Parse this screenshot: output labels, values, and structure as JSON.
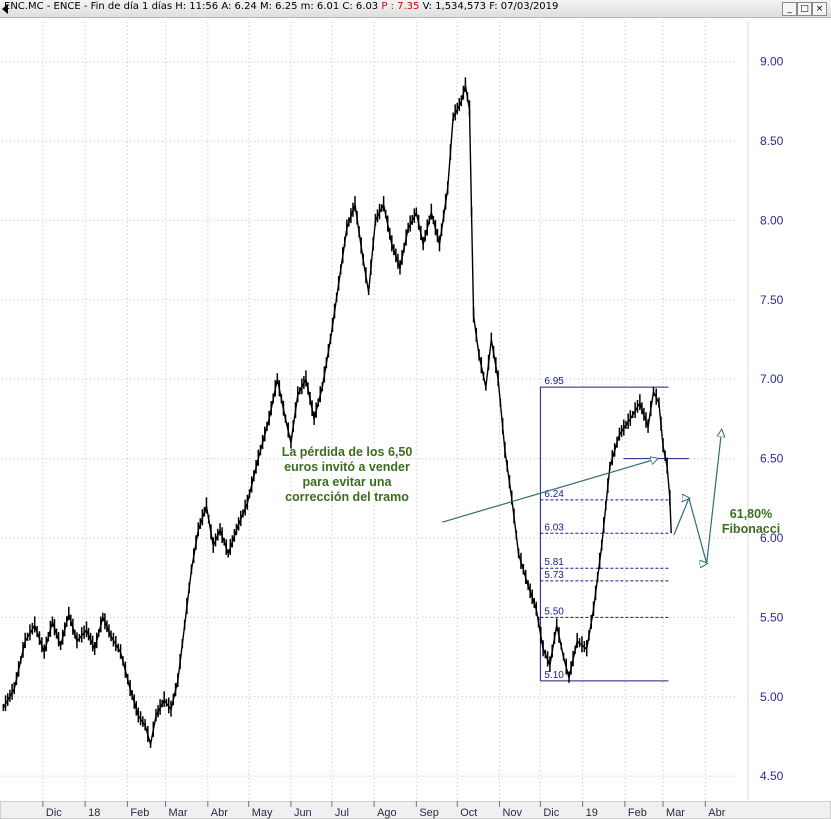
{
  "window": {
    "title_prefix": "ENC.MC - ENCE - Fin de día 1 días",
    "ohlc": {
      "high": "H: 11:56",
      "a": "A: 6.24",
      "m": "M: 6.25",
      "min": "m: 6.01",
      "close": "C: 6.03",
      "p": "P : 7.35",
      "volume": "V: 1,534,573",
      "date": "F: 07/03/2019"
    },
    "buttons": [
      "_",
      "□",
      "×"
    ]
  },
  "chart_data": {
    "type": "candlestick",
    "title": "",
    "xlabel": "",
    "ylabel": "",
    "ylim": [
      4.35,
      9.25
    ],
    "y_ticks": [
      "9.00",
      "8.50",
      "8.00",
      "7.50",
      "7.00",
      "6.50",
      "6.00",
      "5.50",
      "5.00",
      "4.50"
    ],
    "y_tick_values": [
      9.0,
      8.5,
      8.0,
      7.5,
      7.0,
      6.5,
      6.0,
      5.5,
      5.0,
      4.5
    ],
    "x_labels": [
      "Dic",
      "18",
      "Feb",
      "Mar",
      "Abr",
      "May",
      "Jun",
      "Jul",
      "Ago",
      "Sep",
      "Oct",
      "Nov",
      "Dic",
      "19",
      "Feb",
      "Mar",
      "Abr"
    ],
    "x_label_dates": [
      "2017-12-01",
      "2018-01-01",
      "2018-02-01",
      "2018-03-01",
      "2018-04-01",
      "2018-05-01",
      "2018-06-01",
      "2018-07-01",
      "2018-08-01",
      "2018-09-01",
      "2018-10-01",
      "2018-11-01",
      "2018-12-01",
      "2019-01-01",
      "2019-02-01",
      "2019-03-01",
      "2019-04-01"
    ],
    "x_range": [
      "2017-11-01",
      "2019-04-25"
    ],
    "grid": true,
    "colors": {
      "price": "#000000",
      "axis_text": "#2a2a9a",
      "fib": "#1a1a8c",
      "trend": "#2e6e74",
      "annotation": "#3a6e1e",
      "grid": "#c0c0c0"
    },
    "price_path": [
      [
        "2017-11-02",
        4.93
      ],
      [
        "2017-11-10",
        5.05
      ],
      [
        "2017-11-18",
        5.35
      ],
      [
        "2017-11-25",
        5.45
      ],
      [
        "2017-12-02",
        5.28
      ],
      [
        "2017-12-08",
        5.47
      ],
      [
        "2017-12-14",
        5.32
      ],
      [
        "2017-12-20",
        5.52
      ],
      [
        "2017-12-26",
        5.35
      ],
      [
        "2018-01-02",
        5.42
      ],
      [
        "2018-01-08",
        5.3
      ],
      [
        "2018-01-14",
        5.5
      ],
      [
        "2018-01-20",
        5.38
      ],
      [
        "2018-01-27",
        5.28
      ],
      [
        "2018-02-03",
        5.05
      ],
      [
        "2018-02-09",
        4.88
      ],
      [
        "2018-02-14",
        4.82
      ],
      [
        "2018-02-18",
        4.7
      ],
      [
        "2018-02-22",
        4.88
      ],
      [
        "2018-02-28",
        4.98
      ],
      [
        "2018-03-05",
        4.92
      ],
      [
        "2018-03-10",
        5.1
      ],
      [
        "2018-03-15",
        5.45
      ],
      [
        "2018-03-20",
        5.8
      ],
      [
        "2018-03-25",
        6.05
      ],
      [
        "2018-03-31",
        6.2
      ],
      [
        "2018-04-05",
        5.95
      ],
      [
        "2018-04-10",
        6.05
      ],
      [
        "2018-04-16",
        5.9
      ],
      [
        "2018-04-22",
        6.05
      ],
      [
        "2018-04-30",
        6.22
      ],
      [
        "2018-05-08",
        6.5
      ],
      [
        "2018-05-16",
        6.75
      ],
      [
        "2018-05-22",
        7.0
      ],
      [
        "2018-05-28",
        6.75
      ],
      [
        "2018-06-01",
        6.6
      ],
      [
        "2018-06-06",
        6.9
      ],
      [
        "2018-06-12",
        7.0
      ],
      [
        "2018-06-18",
        6.75
      ],
      [
        "2018-06-24",
        6.95
      ],
      [
        "2018-06-30",
        7.25
      ],
      [
        "2018-07-06",
        7.6
      ],
      [
        "2018-07-12",
        7.95
      ],
      [
        "2018-07-18",
        8.1
      ],
      [
        "2018-07-24",
        7.75
      ],
      [
        "2018-07-28",
        7.55
      ],
      [
        "2018-08-02",
        8.0
      ],
      [
        "2018-08-08",
        8.1
      ],
      [
        "2018-08-14",
        7.85
      ],
      [
        "2018-08-20",
        7.7
      ],
      [
        "2018-08-26",
        7.95
      ],
      [
        "2018-09-01",
        8.05
      ],
      [
        "2018-09-06",
        7.85
      ],
      [
        "2018-09-12",
        8.05
      ],
      [
        "2018-09-18",
        7.85
      ],
      [
        "2018-09-24",
        8.2
      ],
      [
        "2018-09-28",
        8.65
      ],
      [
        "2018-10-04",
        8.75
      ],
      [
        "2018-10-07",
        8.85
      ],
      [
        "2018-10-10",
        8.7
      ],
      [
        "2018-10-13",
        7.4
      ],
      [
        "2018-10-17",
        7.15
      ],
      [
        "2018-10-22",
        6.95
      ],
      [
        "2018-10-26",
        7.25
      ],
      [
        "2018-10-31",
        7.0
      ],
      [
        "2018-11-05",
        6.55
      ],
      [
        "2018-11-10",
        6.25
      ],
      [
        "2018-11-15",
        5.9
      ],
      [
        "2018-11-22",
        5.7
      ],
      [
        "2018-11-28",
        5.55
      ],
      [
        "2018-12-03",
        5.3
      ],
      [
        "2018-12-08",
        5.2
      ],
      [
        "2018-12-13",
        5.45
      ],
      [
        "2018-12-18",
        5.25
      ],
      [
        "2018-12-22",
        5.12
      ],
      [
        "2018-12-28",
        5.35
      ],
      [
        "2019-01-04",
        5.3
      ],
      [
        "2019-01-09",
        5.55
      ],
      [
        "2019-01-15",
        5.95
      ],
      [
        "2019-01-21",
        6.45
      ],
      [
        "2019-01-28",
        6.65
      ],
      [
        "2019-02-05",
        6.75
      ],
      [
        "2019-02-12",
        6.85
      ],
      [
        "2019-02-18",
        6.7
      ],
      [
        "2019-02-22",
        6.92
      ],
      [
        "2019-02-26",
        6.85
      ],
      [
        "2019-03-01",
        6.58
      ],
      [
        "2019-03-04",
        6.45
      ],
      [
        "2019-03-06",
        6.25
      ],
      [
        "2019-03-07",
        6.03
      ]
    ],
    "fibonacci": {
      "start_date": "2018-12-01",
      "end_date": "2019-03-05",
      "high": 6.95,
      "low": 5.1,
      "levels": [
        {
          "label": "6.95",
          "value": 6.95,
          "style": "solid"
        },
        {
          "label": "6.24",
          "value": 6.24,
          "style": "dashed"
        },
        {
          "label": "6.03",
          "value": 6.03,
          "style": "dashed"
        },
        {
          "label": "5.81",
          "value": 5.81,
          "style": "dashed"
        },
        {
          "label": "5.73",
          "value": 5.73,
          "style": "dashed"
        },
        {
          "label": "5.50",
          "value": 5.5,
          "style": "dashed"
        },
        {
          "label": "5.10",
          "value": 5.1,
          "style": "solid"
        }
      ],
      "support_line": {
        "value": 6.5,
        "start_date": "2019-01-31",
        "end_date": "2019-03-20"
      }
    },
    "trend_arrow": {
      "from": [
        "2018-09-20",
        6.1
      ],
      "to": [
        "2019-02-25",
        6.5
      ]
    },
    "projection": [
      [
        "2019-03-09",
        6.02
      ],
      [
        "2019-03-20",
        6.25
      ],
      [
        "2019-04-02",
        5.84
      ],
      [
        "2019-04-13",
        6.68
      ]
    ],
    "annotations": [
      {
        "id": "perdida",
        "lines": [
          "La pérdida de los 6,50",
          "euros invitó a vender",
          "para evitar una",
          "corrección del tramo"
        ]
      },
      {
        "id": "fibonacci",
        "lines": [
          "61,80%",
          "Fibonacci"
        ]
      }
    ]
  }
}
